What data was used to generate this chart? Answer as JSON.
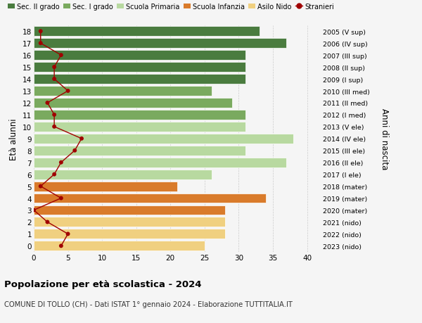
{
  "ages": [
    18,
    17,
    16,
    15,
    14,
    13,
    12,
    11,
    10,
    9,
    8,
    7,
    6,
    5,
    4,
    3,
    2,
    1,
    0
  ],
  "right_labels": [
    "2005 (V sup)",
    "2006 (IV sup)",
    "2007 (III sup)",
    "2008 (II sup)",
    "2009 (I sup)",
    "2010 (III med)",
    "2011 (II med)",
    "2012 (I med)",
    "2013 (V ele)",
    "2014 (IV ele)",
    "2015 (III ele)",
    "2016 (II ele)",
    "2017 (I ele)",
    "2018 (mater)",
    "2019 (mater)",
    "2020 (mater)",
    "2021 (nido)",
    "2022 (nido)",
    "2023 (nido)"
  ],
  "bar_values": [
    33,
    37,
    31,
    31,
    31,
    26,
    29,
    31,
    31,
    38,
    31,
    37,
    26,
    21,
    34,
    28,
    28,
    28,
    25
  ],
  "bar_colors": [
    "#4a7c3f",
    "#4a7c3f",
    "#4a7c3f",
    "#4a7c3f",
    "#4a7c3f",
    "#7aaa5f",
    "#7aaa5f",
    "#7aaa5f",
    "#b8d9a0",
    "#b8d9a0",
    "#b8d9a0",
    "#b8d9a0",
    "#b8d9a0",
    "#d97b2b",
    "#d97b2b",
    "#d97b2b",
    "#f0d080",
    "#f0d080",
    "#f0d080"
  ],
  "stranieri_values": [
    1,
    1,
    4,
    3,
    3,
    5,
    2,
    3,
    3,
    7,
    6,
    4,
    3,
    1,
    4,
    0,
    2,
    5,
    4
  ],
  "xlim": [
    0,
    42
  ],
  "ylim": [
    -0.5,
    18.5
  ],
  "xlabel_ticks": [
    0,
    5,
    10,
    15,
    20,
    25,
    30,
    35,
    40
  ],
  "ylabel": "Età alunni",
  "right_ylabel": "Anni di nascita",
  "title": "Popolazione per età scolastica - 2024",
  "subtitle": "COMUNE DI TOLLO (CH) - Dati ISTAT 1° gennaio 2024 - Elaborazione TUTTITALIA.IT",
  "legend_labels": [
    "Sec. II grado",
    "Sec. I grado",
    "Scuola Primaria",
    "Scuola Infanzia",
    "Asilo Nido",
    "Stranieri"
  ],
  "legend_colors": [
    "#4a7c3f",
    "#7aaa5f",
    "#b8d9a0",
    "#d97b2b",
    "#f0d080",
    "#a00000"
  ],
  "bar_height": 0.82,
  "grid_color": "#cccccc",
  "stranieri_color": "#a00000",
  "bg_color": "#f5f5f5"
}
